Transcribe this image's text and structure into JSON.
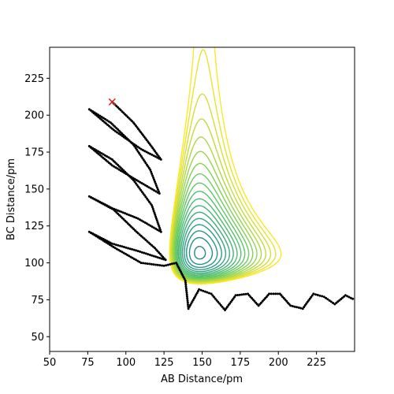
{
  "chart_data": {
    "type": "contour",
    "title": "",
    "xlabel": "AB Distance/pm",
    "ylabel": "BC Distance/pm",
    "xlim": [
      50,
      250
    ],
    "ylim": [
      40,
      246
    ],
    "x_ticks": [
      50,
      75,
      100,
      125,
      150,
      175,
      200,
      225
    ],
    "y_ticks": [
      50,
      75,
      100,
      125,
      150,
      175,
      200,
      225
    ],
    "x_tick_labels": [
      "50",
      "75",
      "100",
      "125",
      "150",
      "175",
      "200",
      "225"
    ],
    "y_tick_labels": [
      "50",
      "75",
      "100",
      "125",
      "150",
      "175",
      "200",
      "225"
    ],
    "colormap": [
      "#440154",
      "#3b528b",
      "#21918c",
      "#5ec962",
      "#fde725"
    ],
    "contour_levels": 32,
    "grid": false,
    "legend": "none",
    "start_marker": {
      "x": 91,
      "y": 209,
      "symbol": "x",
      "color": "#d62728"
    },
    "trajectory": {
      "color": "#000000",
      "points": [
        [
          91,
          209
        ],
        [
          105,
          195
        ],
        [
          116,
          180
        ],
        [
          123,
          170
        ],
        [
          110,
          177
        ],
        [
          92,
          190
        ],
        [
          76,
          204
        ],
        [
          90,
          195
        ],
        [
          105,
          180
        ],
        [
          116,
          163
        ],
        [
          122,
          147
        ],
        [
          107,
          156
        ],
        [
          91,
          166
        ],
        [
          76,
          179
        ],
        [
          91,
          170
        ],
        [
          105,
          156
        ],
        [
          117,
          139
        ],
        [
          123,
          121
        ],
        [
          108,
          130
        ],
        [
          91,
          137
        ],
        [
          76,
          145
        ],
        [
          92,
          136
        ],
        [
          107,
          121
        ],
        [
          119,
          110
        ],
        [
          126,
          102
        ],
        [
          108,
          108
        ],
        [
          91,
          113
        ],
        [
          76,
          121
        ],
        [
          93,
          110
        ],
        [
          110,
          100
        ],
        [
          125,
          98
        ],
        [
          133,
          100
        ],
        [
          139,
          88
        ],
        [
          141,
          69
        ],
        [
          148,
          82
        ],
        [
          156,
          79
        ],
        [
          165,
          68
        ],
        [
          172,
          78
        ],
        [
          180,
          79
        ],
        [
          187,
          71
        ],
        [
          194,
          79
        ],
        [
          201,
          79
        ],
        [
          208,
          71
        ],
        [
          216,
          69
        ],
        [
          223,
          79
        ],
        [
          230,
          77
        ],
        [
          237,
          72
        ],
        [
          244,
          78
        ],
        [
          250,
          75
        ]
      ]
    }
  }
}
